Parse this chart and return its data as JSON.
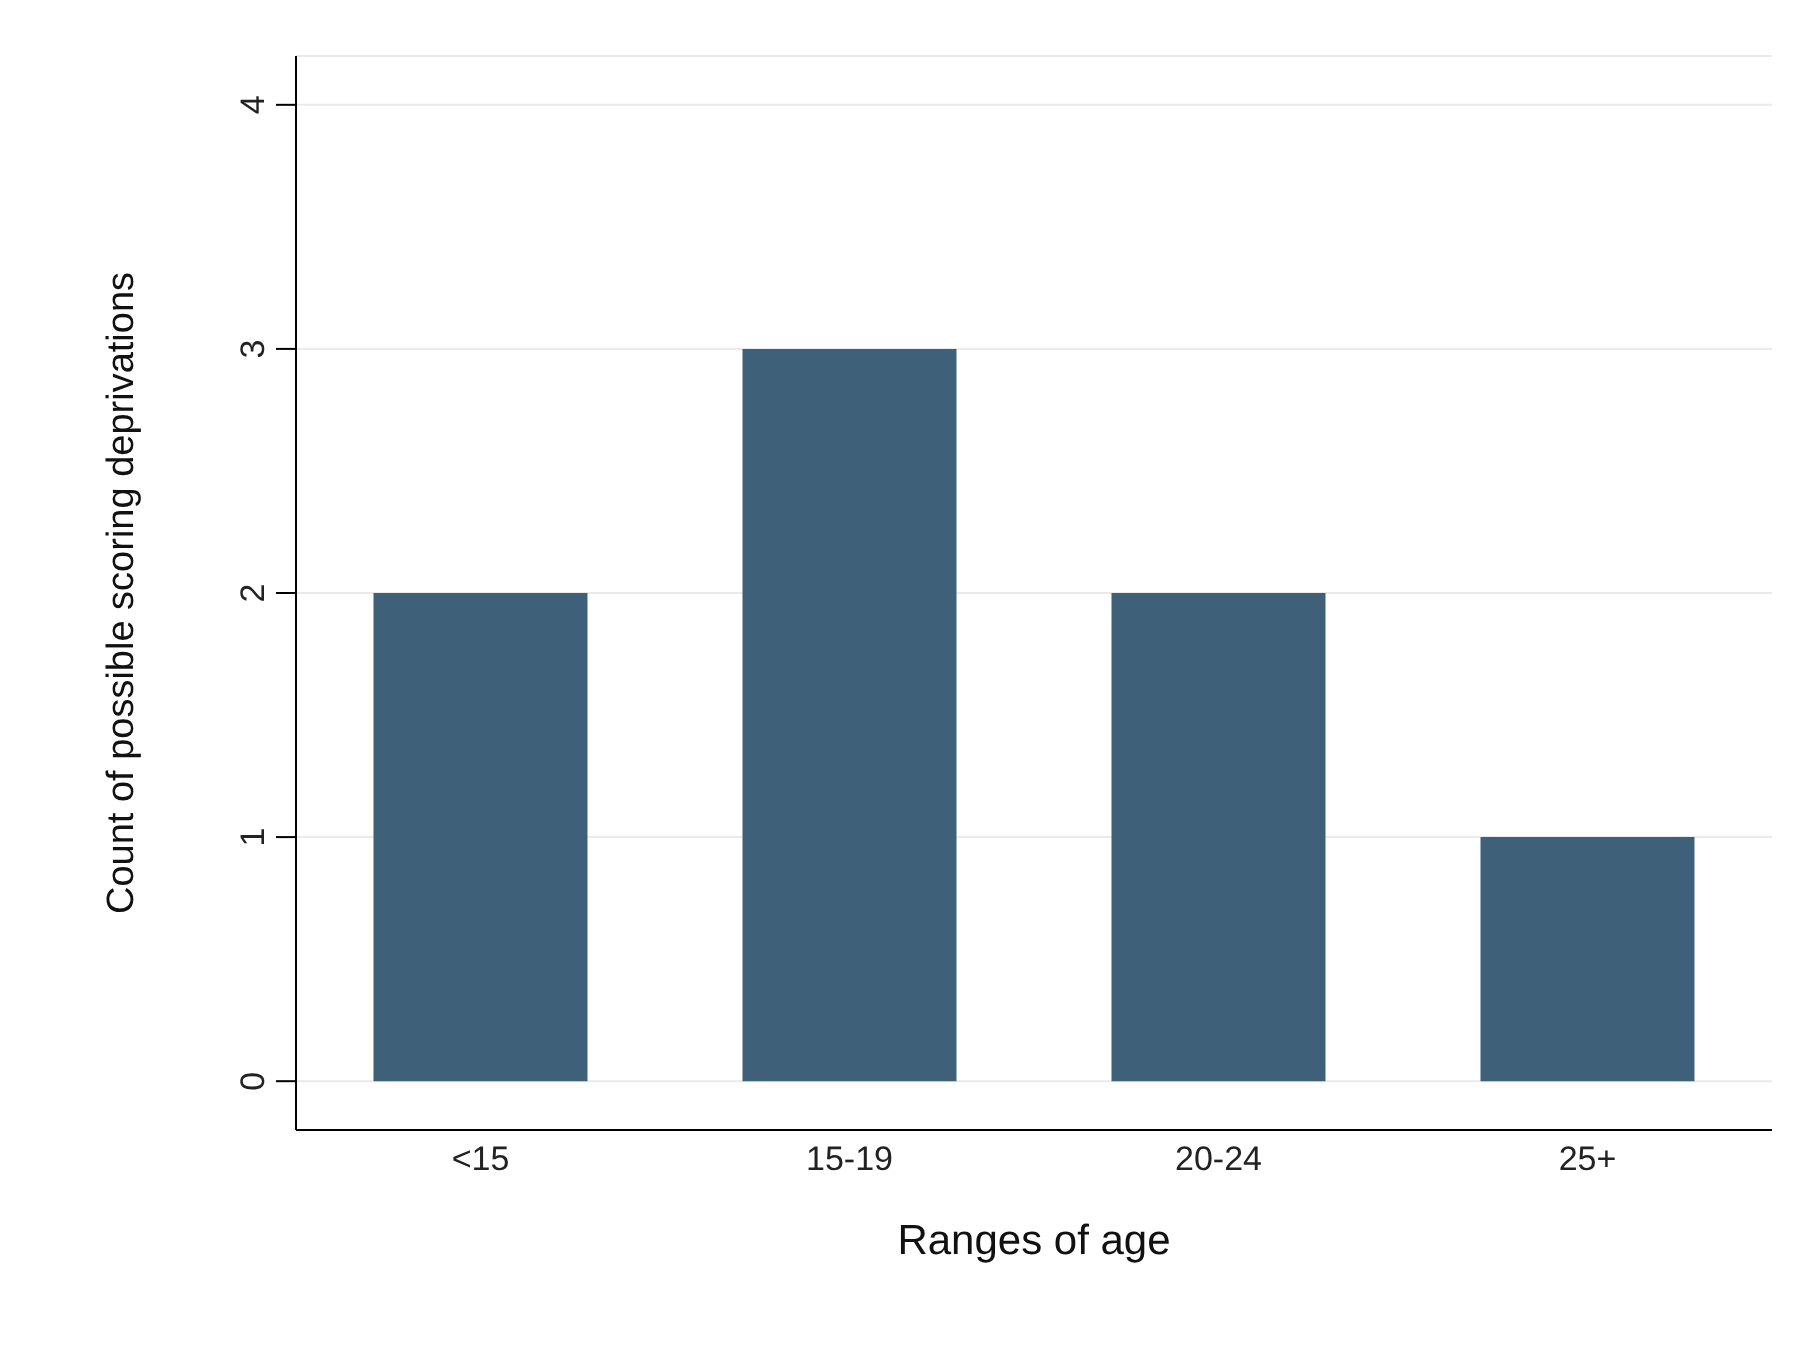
{
  "chart_data": {
    "type": "bar",
    "categories": [
      "<15",
      "15-19",
      "20-24",
      "25+"
    ],
    "values": [
      2,
      3,
      2,
      1
    ],
    "color": "#3e6179",
    "xlabel": "Ranges of age",
    "ylabel": "Count of possible scoring deprivations",
    "ylim": [
      -0.2,
      4.2
    ],
    "yticks": [
      0,
      1,
      2,
      3,
      4
    ],
    "grid": "y"
  }
}
